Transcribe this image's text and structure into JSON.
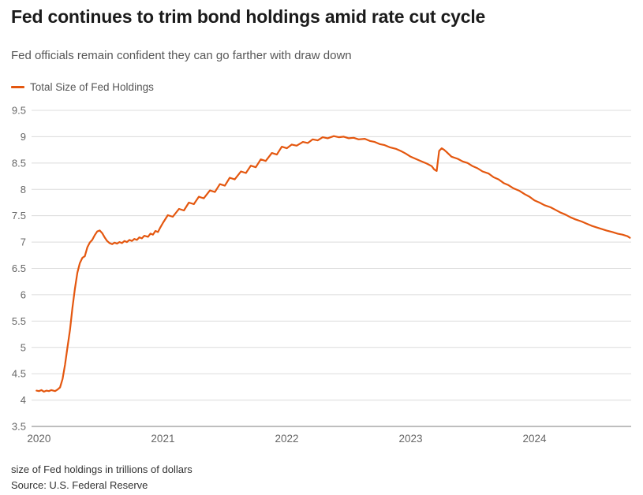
{
  "header": {
    "title": "Fed continues to trim bond holdings amid rate cut cycle",
    "subtitle": "Fed officials remain confident they can go farther with draw down"
  },
  "legend": {
    "label": "Total Size of Fed Holdings"
  },
  "footer": {
    "note": "size of Fed holdings in trillions of dollars",
    "source": "Source: U.S. Federal Reserve"
  },
  "colors": {
    "accent_line": "#e4570f",
    "grid": "#dcdcdc",
    "axis": "#a8a8a8",
    "tick_text": "#666666"
  },
  "chart_data": {
    "type": "line",
    "title": "Fed continues to trim bond holdings amid rate cut cycle",
    "subtitle": "Fed officials remain confident they can go farther with draw down",
    "ylabel": "size of Fed holdings in trillions of dollars",
    "xlabel": "",
    "source": "Source: U.S. Federal Reserve",
    "legend_position": "top-left",
    "grid": "horizontal",
    "xlim": [
      2019.94,
      2024.78
    ],
    "ylim": [
      3.5,
      9.5
    ],
    "xticks": [
      2020,
      2021,
      2022,
      2023,
      2024
    ],
    "yticks": [
      3.5,
      4,
      4.5,
      5,
      5.5,
      6,
      6.5,
      7,
      7.5,
      8,
      8.5,
      9,
      9.5
    ],
    "series": [
      {
        "name": "Total Size of Fed Holdings",
        "color": "#e4570f",
        "points": [
          [
            2019.98,
            4.18
          ],
          [
            2020.0,
            4.17
          ],
          [
            2020.02,
            4.19
          ],
          [
            2020.04,
            4.16
          ],
          [
            2020.06,
            4.18
          ],
          [
            2020.08,
            4.17
          ],
          [
            2020.1,
            4.19
          ],
          [
            2020.13,
            4.17
          ],
          [
            2020.15,
            4.2
          ],
          [
            2020.17,
            4.24
          ],
          [
            2020.19,
            4.4
          ],
          [
            2020.21,
            4.67
          ],
          [
            2020.23,
            5.0
          ],
          [
            2020.25,
            5.33
          ],
          [
            2020.27,
            5.75
          ],
          [
            2020.29,
            6.12
          ],
          [
            2020.31,
            6.42
          ],
          [
            2020.33,
            6.6
          ],
          [
            2020.35,
            6.7
          ],
          [
            2020.37,
            6.73
          ],
          [
            2020.39,
            6.9
          ],
          [
            2020.41,
            6.99
          ],
          [
            2020.43,
            7.04
          ],
          [
            2020.45,
            7.13
          ],
          [
            2020.47,
            7.2
          ],
          [
            2020.49,
            7.22
          ],
          [
            2020.51,
            7.17
          ],
          [
            2020.53,
            7.09
          ],
          [
            2020.55,
            7.02
          ],
          [
            2020.57,
            6.98
          ],
          [
            2020.59,
            6.96
          ],
          [
            2020.61,
            6.99
          ],
          [
            2020.63,
            6.97
          ],
          [
            2020.65,
            7.0
          ],
          [
            2020.67,
            6.98
          ],
          [
            2020.69,
            7.02
          ],
          [
            2020.71,
            7.0
          ],
          [
            2020.73,
            7.04
          ],
          [
            2020.75,
            7.02
          ],
          [
            2020.77,
            7.06
          ],
          [
            2020.79,
            7.04
          ],
          [
            2020.81,
            7.09
          ],
          [
            2020.83,
            7.07
          ],
          [
            2020.85,
            7.12
          ],
          [
            2020.88,
            7.1
          ],
          [
            2020.9,
            7.16
          ],
          [
            2020.92,
            7.14
          ],
          [
            2020.94,
            7.21
          ],
          [
            2020.96,
            7.19
          ],
          [
            2020.98,
            7.28
          ],
          [
            2021.0,
            7.36
          ],
          [
            2021.04,
            7.51
          ],
          [
            2021.08,
            7.48
          ],
          [
            2021.13,
            7.63
          ],
          [
            2021.17,
            7.6
          ],
          [
            2021.21,
            7.75
          ],
          [
            2021.25,
            7.72
          ],
          [
            2021.29,
            7.86
          ],
          [
            2021.33,
            7.83
          ],
          [
            2021.38,
            7.98
          ],
          [
            2021.42,
            7.95
          ],
          [
            2021.46,
            8.1
          ],
          [
            2021.5,
            8.07
          ],
          [
            2021.54,
            8.22
          ],
          [
            2021.58,
            8.19
          ],
          [
            2021.63,
            8.34
          ],
          [
            2021.67,
            8.31
          ],
          [
            2021.71,
            8.45
          ],
          [
            2021.75,
            8.42
          ],
          [
            2021.79,
            8.57
          ],
          [
            2021.83,
            8.54
          ],
          [
            2021.88,
            8.69
          ],
          [
            2021.92,
            8.66
          ],
          [
            2021.96,
            8.81
          ],
          [
            2022.0,
            8.78
          ],
          [
            2022.04,
            8.85
          ],
          [
            2022.08,
            8.83
          ],
          [
            2022.13,
            8.9
          ],
          [
            2022.17,
            8.88
          ],
          [
            2022.21,
            8.95
          ],
          [
            2022.25,
            8.93
          ],
          [
            2022.29,
            8.99
          ],
          [
            2022.33,
            8.97
          ],
          [
            2022.38,
            9.01
          ],
          [
            2022.42,
            8.99
          ],
          [
            2022.46,
            9.0
          ],
          [
            2022.5,
            8.97
          ],
          [
            2022.54,
            8.98
          ],
          [
            2022.58,
            8.95
          ],
          [
            2022.63,
            8.96
          ],
          [
            2022.67,
            8.92
          ],
          [
            2022.71,
            8.9
          ],
          [
            2022.75,
            8.86
          ],
          [
            2022.79,
            8.84
          ],
          [
            2022.83,
            8.8
          ],
          [
            2022.88,
            8.77
          ],
          [
            2022.92,
            8.73
          ],
          [
            2022.96,
            8.68
          ],
          [
            2023.0,
            8.62
          ],
          [
            2023.04,
            8.58
          ],
          [
            2023.08,
            8.54
          ],
          [
            2023.13,
            8.49
          ],
          [
            2023.17,
            8.44
          ],
          [
            2023.19,
            8.38
          ],
          [
            2023.21,
            8.35
          ],
          [
            2023.23,
            8.73
          ],
          [
            2023.25,
            8.78
          ],
          [
            2023.27,
            8.75
          ],
          [
            2023.29,
            8.71
          ],
          [
            2023.33,
            8.62
          ],
          [
            2023.38,
            8.58
          ],
          [
            2023.42,
            8.53
          ],
          [
            2023.46,
            8.5
          ],
          [
            2023.5,
            8.44
          ],
          [
            2023.54,
            8.4
          ],
          [
            2023.58,
            8.34
          ],
          [
            2023.63,
            8.3
          ],
          [
            2023.67,
            8.23
          ],
          [
            2023.71,
            8.19
          ],
          [
            2023.75,
            8.12
          ],
          [
            2023.79,
            8.08
          ],
          [
            2023.83,
            8.02
          ],
          [
            2023.88,
            7.97
          ],
          [
            2023.92,
            7.91
          ],
          [
            2023.96,
            7.86
          ],
          [
            2024.0,
            7.79
          ],
          [
            2024.04,
            7.75
          ],
          [
            2024.08,
            7.7
          ],
          [
            2024.13,
            7.66
          ],
          [
            2024.17,
            7.61
          ],
          [
            2024.21,
            7.56
          ],
          [
            2024.25,
            7.52
          ],
          [
            2024.29,
            7.47
          ],
          [
            2024.33,
            7.43
          ],
          [
            2024.38,
            7.39
          ],
          [
            2024.42,
            7.35
          ],
          [
            2024.46,
            7.31
          ],
          [
            2024.5,
            7.28
          ],
          [
            2024.54,
            7.25
          ],
          [
            2024.58,
            7.22
          ],
          [
            2024.63,
            7.19
          ],
          [
            2024.67,
            7.16
          ],
          [
            2024.71,
            7.14
          ],
          [
            2024.75,
            7.11
          ],
          [
            2024.77,
            7.08
          ]
        ]
      }
    ]
  }
}
